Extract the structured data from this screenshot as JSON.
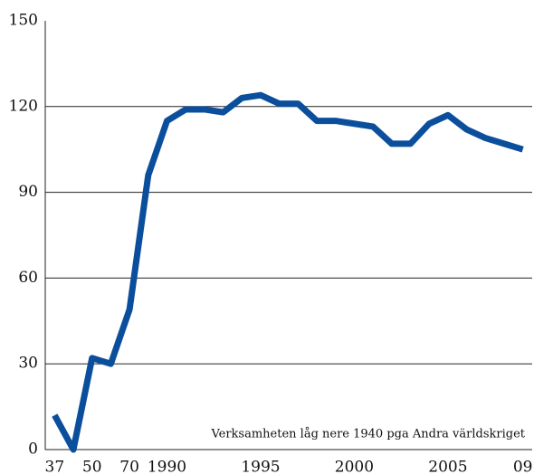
{
  "chart_data": {
    "type": "line",
    "annotation": "Verksamheten låg nere 1940 pga Andra världskriget",
    "categories": [
      "37",
      null,
      "50",
      null,
      "70",
      null,
      "1990",
      null,
      null,
      null,
      null,
      "1995",
      null,
      null,
      null,
      null,
      "2000",
      null,
      null,
      null,
      null,
      "2005",
      null,
      null,
      null,
      "09"
    ],
    "series": [
      {
        "color": "#0b4f9c",
        "values": [
          12,
          0,
          32,
          30,
          49,
          96,
          115,
          119,
          119,
          118,
          123,
          124,
          121,
          121,
          115,
          115,
          114,
          113,
          107,
          107,
          114,
          117,
          112,
          109,
          107,
          105
        ]
      }
    ],
    "ylim": [
      0,
      150
    ],
    "yticks": [
      0,
      30,
      60,
      90,
      120,
      150
    ],
    "grid": true
  }
}
